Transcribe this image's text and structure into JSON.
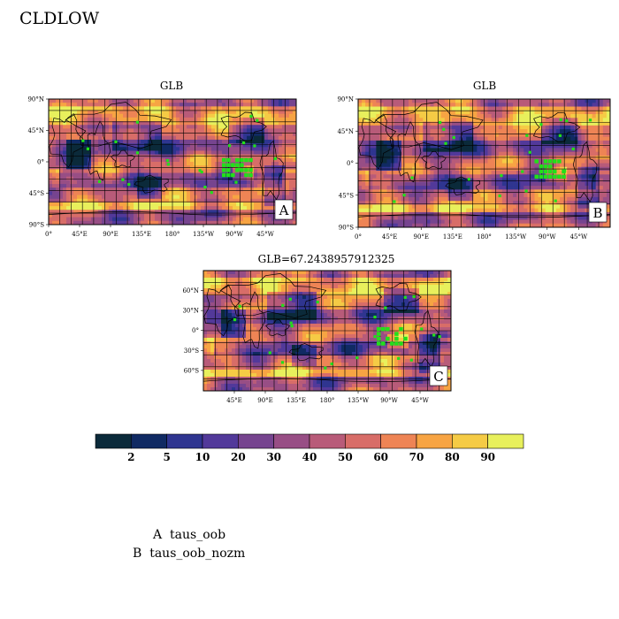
{
  "title": "CLDLOW",
  "palette": [
    "#0b2a3a",
    "#102a63",
    "#2f3590",
    "#52399a",
    "#76448f",
    "#984e85",
    "#b85b79",
    "#d86d68",
    "#ee8455",
    "#f7a443",
    "#f5cb45",
    "#e8f05c"
  ],
  "accent_marker_color": "#22e01a",
  "chart_data": [
    {
      "type": "heatmap",
      "panel": "A",
      "title": "GLB",
      "x_tick_labels": [
        "0°",
        "45°E",
        "90°E",
        "135°E",
        "180°",
        "135°W",
        "90°W",
        "45°W"
      ],
      "y_tick_labels": [
        "90°N",
        "45°N",
        "0°",
        "45°S",
        "90°S"
      ]
    },
    {
      "type": "heatmap",
      "panel": "B",
      "title": "GLB",
      "x_tick_labels": [
        "0°",
        "45°E",
        "90°E",
        "135°E",
        "180°",
        "135°W",
        "90°W",
        "45°W"
      ],
      "y_tick_labels": [
        "90°N",
        "45°N",
        "0°",
        "45°S",
        "90°S"
      ]
    },
    {
      "type": "heatmap",
      "panel": "C",
      "title": "GLB=67.2438957912325",
      "x_tick_labels": [
        "45°E",
        "90°E",
        "135°E",
        "180°",
        "135°W",
        "90°W",
        "45°W"
      ],
      "y_tick_labels": [
        "60°N",
        "30°N",
        "0°",
        "30°S",
        "60°S"
      ]
    }
  ],
  "colorbar": {
    "levels": [
      "2",
      "5",
      "10",
      "20",
      "30",
      "40",
      "50",
      "60",
      "70",
      "80",
      "90"
    ]
  },
  "legend": [
    {
      "key": "A",
      "label": "taus_oob"
    },
    {
      "key": "B",
      "label": "taus_oob_nozm"
    }
  ]
}
